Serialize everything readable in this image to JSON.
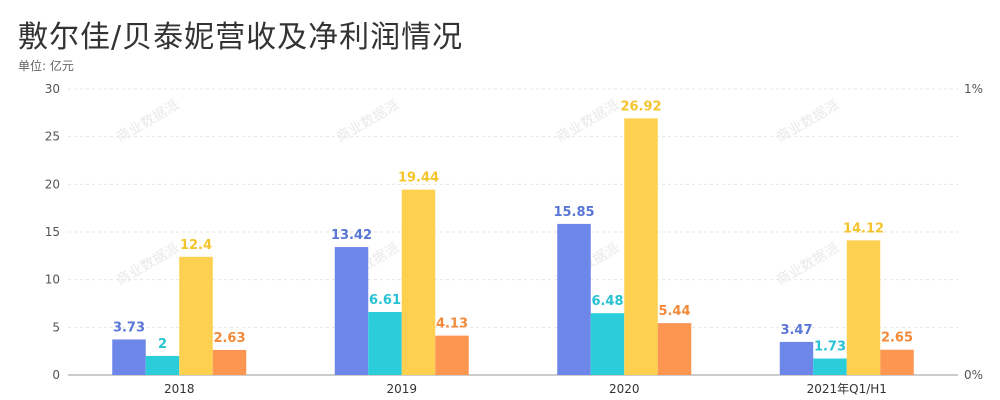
{
  "header": {
    "title": "敷尔佳/贝泰妮营收及净利润情况",
    "unit_label": "单位: 亿元"
  },
  "watermark": {
    "text": "商业数据派",
    "color": "#d6d6d6"
  },
  "colors": {
    "series": [
      "#6d87e8",
      "#2bcddb",
      "#fdd050",
      "#fc9650"
    ],
    "labels": [
      "#5a76d6",
      "#27c3d3",
      "#f5c42c",
      "#f28a3c"
    ],
    "grid": "#e6e6e6",
    "axis": "#999999"
  },
  "chart_data": {
    "type": "bar",
    "categories": [
      "2018",
      "2019",
      "2020",
      "2021年Q1/H1"
    ],
    "series": [
      {
        "values": [
          3.73,
          13.42,
          15.85,
          3.47
        ]
      },
      {
        "values": [
          2,
          6.61,
          6.48,
          1.73
        ]
      },
      {
        "values": [
          12.4,
          19.44,
          26.92,
          14.12
        ]
      },
      {
        "values": [
          2.63,
          4.13,
          5.44,
          2.65
        ]
      }
    ],
    "data_labels": [
      [
        "3.73",
        "13.42",
        "15.85",
        "3.47"
      ],
      [
        "2",
        "6.61",
        "6.48",
        "1.73"
      ],
      [
        "12.4",
        "19.44",
        "26.92",
        "14.12"
      ],
      [
        "2.63",
        "4.13",
        "5.44",
        "2.65"
      ]
    ],
    "title": "敷尔佳/贝泰妮营收及净利润情况",
    "ylabel": "单位: 亿元",
    "ylim": [
      0,
      30
    ],
    "y_ticks": [
      0,
      5,
      10,
      15,
      20,
      25,
      30
    ],
    "y2_ticks": [
      "0%",
      "1%"
    ],
    "grid": true,
    "legend": "none"
  }
}
